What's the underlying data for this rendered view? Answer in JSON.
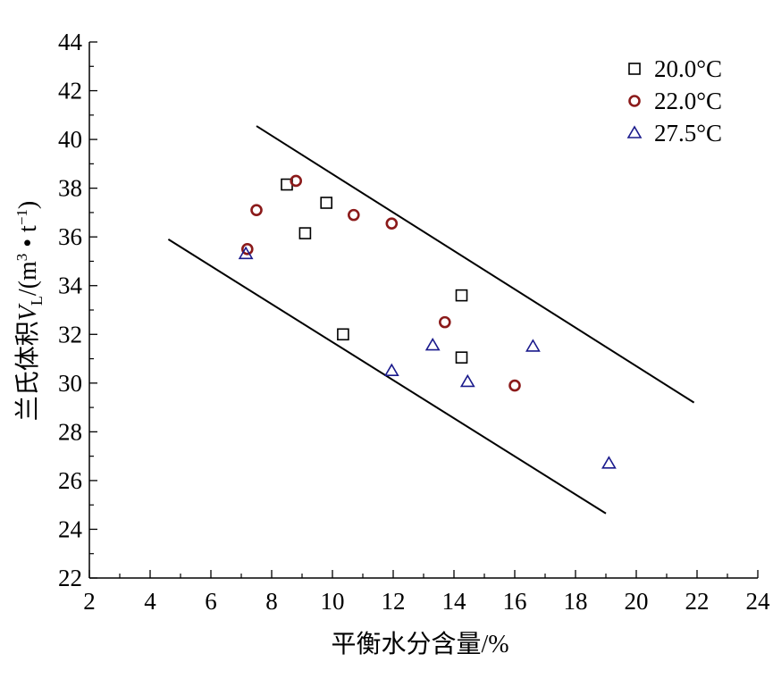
{
  "chart_data": {
    "type": "scatter",
    "xlabel": "平衡水分含量/%",
    "ylabel_parts": [
      "兰氏体积",
      "V",
      "L",
      "/(m",
      "3",
      " • t",
      "−1",
      ")"
    ],
    "xlim": [
      2,
      24
    ],
    "ylim": [
      22,
      44
    ],
    "xticks": [
      2,
      4,
      6,
      8,
      10,
      12,
      14,
      16,
      18,
      20,
      22,
      24
    ],
    "yticks": [
      22,
      24,
      26,
      28,
      30,
      32,
      34,
      36,
      38,
      40,
      42,
      44
    ],
    "legend_position": "top-right",
    "grid": false,
    "series": [
      {
        "name": "20.0°C",
        "marker": "square",
        "color": "#000000",
        "points": [
          [
            8.5,
            38.15
          ],
          [
            9.1,
            36.15
          ],
          [
            9.8,
            37.4
          ],
          [
            10.35,
            32.0
          ],
          [
            14.25,
            33.6
          ],
          [
            14.25,
            31.05
          ]
        ]
      },
      {
        "name": "22.0°C",
        "marker": "circle",
        "color": "#8B1A1A",
        "points": [
          [
            7.2,
            35.5
          ],
          [
            7.5,
            37.1
          ],
          [
            8.8,
            38.3
          ],
          [
            10.7,
            36.9
          ],
          [
            11.95,
            36.55
          ],
          [
            13.7,
            32.5
          ],
          [
            16.0,
            29.9
          ]
        ]
      },
      {
        "name": "27.5°C",
        "marker": "triangle",
        "color": "#1A1A8C",
        "points": [
          [
            7.15,
            35.3
          ],
          [
            11.95,
            30.5
          ],
          [
            13.3,
            31.55
          ],
          [
            14.45,
            30.05
          ],
          [
            16.6,
            31.5
          ],
          [
            19.1,
            26.7
          ]
        ]
      }
    ],
    "lines": [
      {
        "x": [
          7.5,
          21.9
        ],
        "y": [
          40.55,
          29.2
        ],
        "color": "#000000"
      },
      {
        "x": [
          4.6,
          19.0
        ],
        "y": [
          35.9,
          24.65
        ],
        "color": "#000000"
      }
    ]
  }
}
